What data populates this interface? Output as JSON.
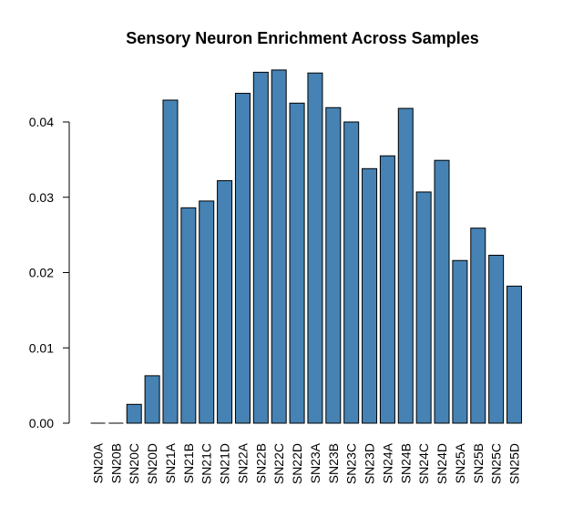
{
  "chart_data": {
    "type": "bar",
    "title": "Sensory Neuron Enrichment Across Samples",
    "xlabel": "",
    "ylabel": "",
    "categories": [
      "SN20A",
      "SN20B",
      "SN20C",
      "SN20D",
      "SN21A",
      "SN21B",
      "SN21C",
      "SN21D",
      "SN22A",
      "SN22B",
      "SN22C",
      "SN22D",
      "SN23A",
      "SN23B",
      "SN23C",
      "SN23D",
      "SN24A",
      "SN24B",
      "SN24C",
      "SN24D",
      "SN25A",
      "SN25B",
      "SN25C",
      "SN25D"
    ],
    "values": [
      0.0,
      0.0,
      0.0025,
      0.0063,
      0.0429,
      0.0286,
      0.0295,
      0.0322,
      0.0438,
      0.0466,
      0.0469,
      0.0425,
      0.0465,
      0.0419,
      0.04,
      0.0338,
      0.0355,
      0.0418,
      0.0307,
      0.0349,
      0.0216,
      0.0259,
      0.0223,
      0.0182
    ],
    "ylim": [
      0,
      0.05
    ],
    "yticks": [
      0.0,
      0.01,
      0.02,
      0.03,
      0.04
    ],
    "ytick_labels": [
      "0.00",
      "0.01",
      "0.02",
      "0.03",
      "0.04"
    ],
    "bar_color": "#4682B4",
    "bar_border_color": "#000000",
    "grid": false,
    "legend": "none"
  }
}
